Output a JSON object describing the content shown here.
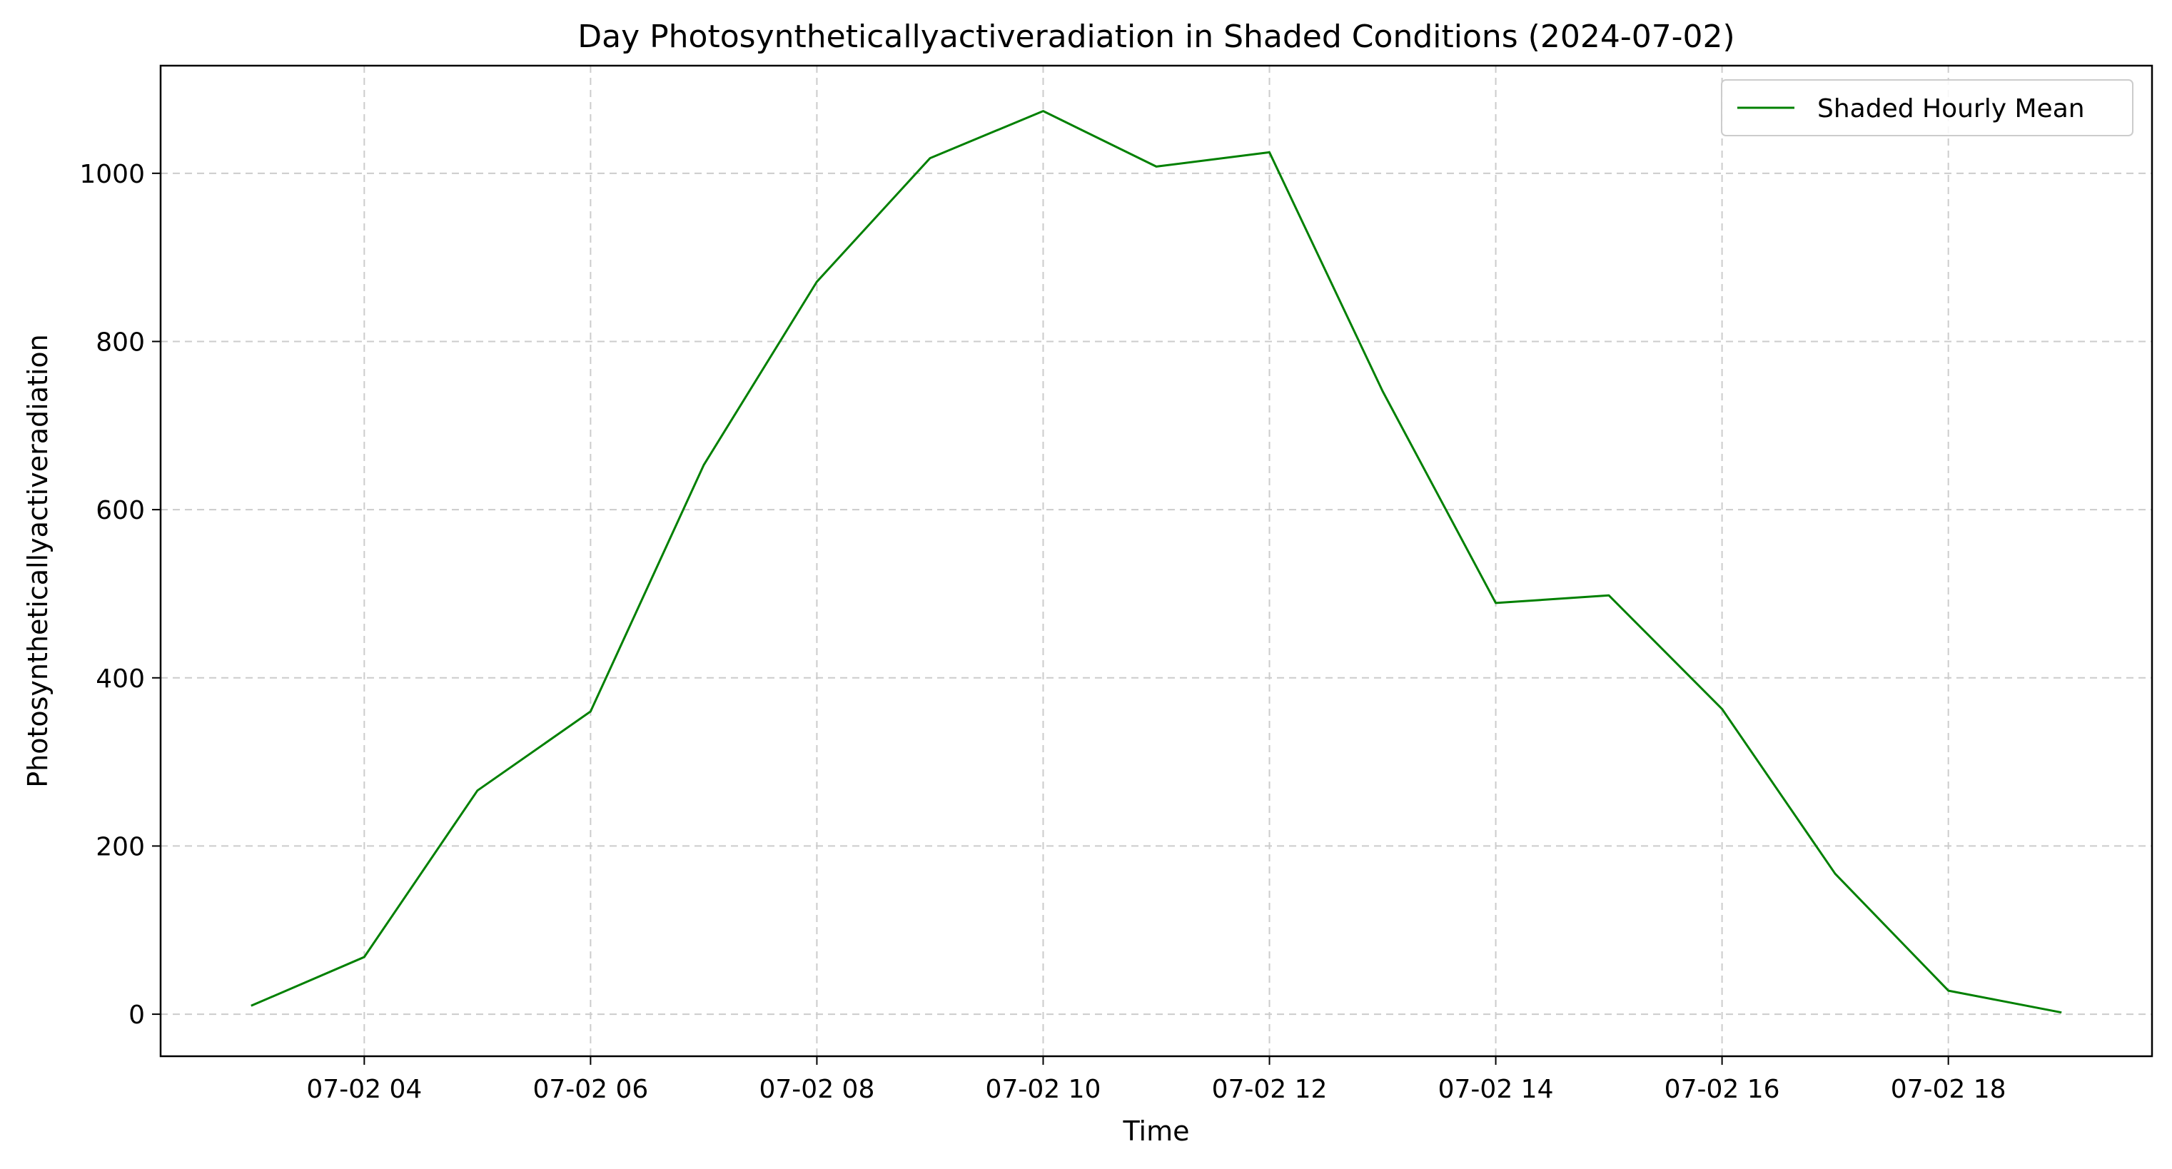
{
  "chart_data": {
    "type": "line",
    "title": "Day Photosyntheticallyactiveradiation in Shaded Conditions (2024-07-02)",
    "xlabel": "Time",
    "ylabel": "Photosyntheticallyactiveradiation",
    "x": [
      "03:00",
      "04:00",
      "05:00",
      "06:00",
      "07:00",
      "08:00",
      "09:00",
      "10:00",
      "11:00",
      "12:00",
      "13:00",
      "14:00",
      "15:00",
      "16:00",
      "17:00",
      "18:00",
      "19:00"
    ],
    "x_hours": [
      3,
      4,
      5,
      6,
      7,
      8,
      9,
      10,
      11,
      12,
      13,
      14,
      15,
      16,
      17,
      18,
      19
    ],
    "series": [
      {
        "name": "Shaded Hourly Mean",
        "color": "#008000",
        "values": [
          10,
          68,
          266,
          360,
          653,
          871,
          1018,
          1074,
          1008,
          1025,
          741,
          489,
          498,
          363,
          167,
          28,
          2
        ]
      }
    ],
    "xticks": [
      {
        "hour": 4,
        "label": "07-02 04"
      },
      {
        "hour": 6,
        "label": "07-02 06"
      },
      {
        "hour": 8,
        "label": "07-02 08"
      },
      {
        "hour": 10,
        "label": "07-02 10"
      },
      {
        "hour": 12,
        "label": "07-02 12"
      },
      {
        "hour": 14,
        "label": "07-02 14"
      },
      {
        "hour": 16,
        "label": "07-02 16"
      },
      {
        "hour": 18,
        "label": "07-02 18"
      }
    ],
    "yticks": [
      0,
      200,
      400,
      600,
      800,
      1000
    ],
    "xlim": [
      2.2,
      19.8
    ],
    "ylim": [
      -50,
      1128
    ],
    "grid": true,
    "legend_position": "top-right"
  }
}
